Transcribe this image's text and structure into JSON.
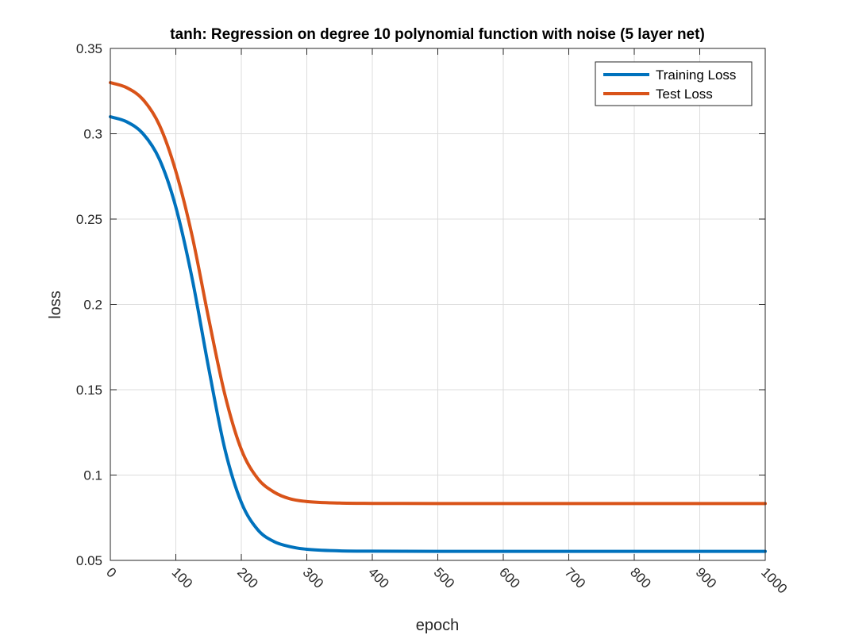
{
  "chart_data": {
    "type": "line",
    "title": "tanh: Regression on degree 10 polynomial function with noise (5 layer net)",
    "xlabel": "epoch",
    "ylabel": "loss",
    "xlim": [
      0,
      1000
    ],
    "ylim": [
      0.05,
      0.35
    ],
    "xticks": [
      0,
      100,
      200,
      300,
      400,
      500,
      600,
      700,
      800,
      900,
      1000
    ],
    "xtick_labels": [
      "0",
      "100",
      "200",
      "300",
      "400",
      "500",
      "600",
      "700",
      "800",
      "900",
      "1000"
    ],
    "yticks": [
      0.05,
      0.1,
      0.15,
      0.2,
      0.25,
      0.3,
      0.35
    ],
    "ytick_labels": [
      "0.05",
      "0.1",
      "0.15",
      "0.2",
      "0.25",
      "0.3",
      "0.35"
    ],
    "grid": true,
    "legend_position": "top-right",
    "x": [
      0,
      25,
      50,
      75,
      100,
      125,
      150,
      175,
      200,
      225,
      250,
      275,
      300,
      350,
      400,
      500,
      600,
      700,
      800,
      900,
      1000
    ],
    "series": [
      {
        "name": "Training Loss",
        "color": "#0072BD",
        "values": [
          0.31,
          0.307,
          0.3,
          0.285,
          0.257,
          0.215,
          0.163,
          0.115,
          0.084,
          0.068,
          0.061,
          0.058,
          0.0565,
          0.0556,
          0.0554,
          0.0553,
          0.0553,
          0.0553,
          0.0553,
          0.0553,
          0.0553
        ]
      },
      {
        "name": "Test Loss",
        "color": "#D95319",
        "values": [
          0.33,
          0.327,
          0.32,
          0.305,
          0.278,
          0.24,
          0.192,
          0.147,
          0.115,
          0.098,
          0.09,
          0.086,
          0.0845,
          0.0836,
          0.0834,
          0.0833,
          0.0833,
          0.0833,
          0.0833,
          0.0833,
          0.0833
        ]
      }
    ]
  }
}
